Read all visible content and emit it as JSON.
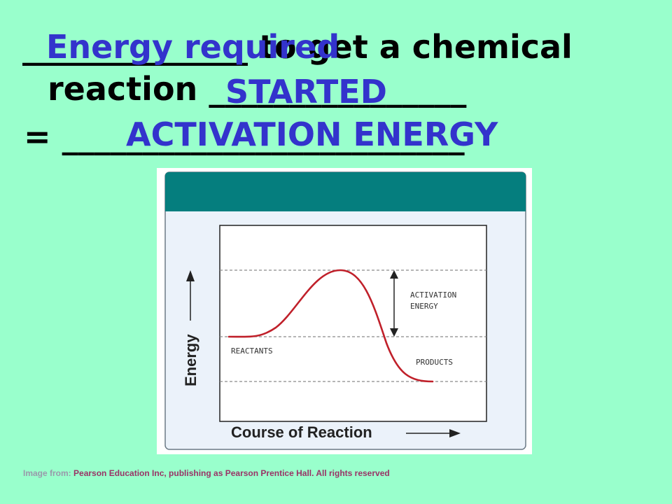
{
  "text": {
    "line1_blank": "______________",
    "line1_rest": " to get a chemical",
    "line2_start": "reaction ",
    "line2_blank": "________________",
    "line3_eq": "= ",
    "line3_blank": "_________________________"
  },
  "answers": {
    "a1": "Energy required",
    "a2": "STARTED",
    "a3": "ACTIVATION ENERGY"
  },
  "diagram": {
    "y_axis_label": "Energy",
    "x_axis_label": "Course of Reaction",
    "labels": {
      "reactants": "REACTANTS",
      "products": "PRODUCTS",
      "activation_line1": "ACTIVATION",
      "activation_line2": "ENERGY"
    }
  },
  "caption": {
    "lead": "Image from: ",
    "source": "Pearson Education Inc, publishing as Pearson Prentice Hall. All rights reserved"
  },
  "colors": {
    "background": "#99ffcc",
    "answer_text": "#3333cc",
    "header_bar": "#057e7e",
    "curve": "#c0202a",
    "panel": "#ebf2fa"
  }
}
